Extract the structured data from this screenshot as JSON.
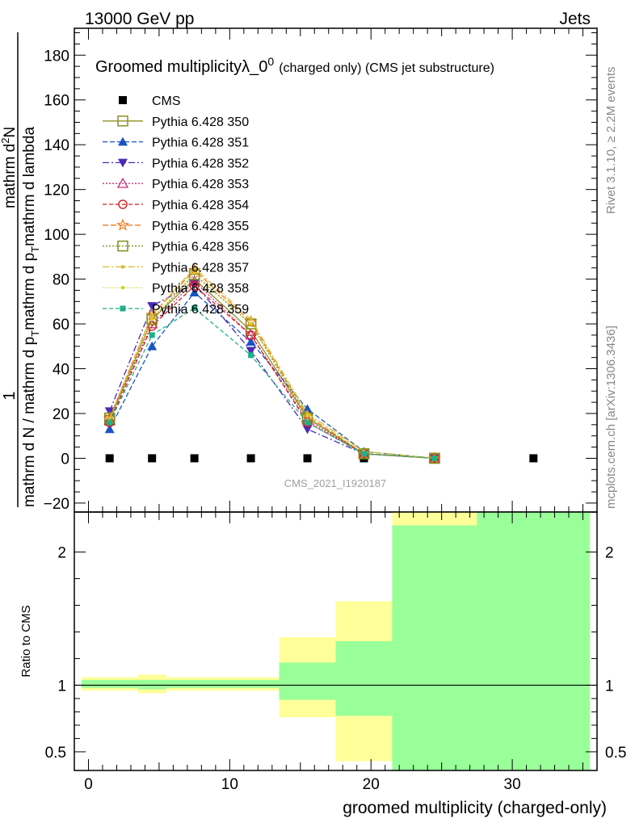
{
  "header": {
    "left": "13000 GeV pp",
    "right": "Jets"
  },
  "side_labels": {
    "rivet": "Rivet 3.1.10, ≥ 2.2M events",
    "mcplots": "mcplots.cern.ch [arXiv:1306.3436]"
  },
  "watermark": "CMS_2021_I1920187",
  "chart_data": [
    {
      "type": "line",
      "title": "Groomed multiplicityλ_0",
      "title_sup": "0",
      "title_suffix": "(charged only) (CMS jet substructure)",
      "ylabel": {
        "numerator": "1",
        "denominator": "mathrm d N / mathrm d p",
        "denominator_sub": "T",
        "denominator_tail": "mathrm d p",
        "denominator_tail_sub": "T",
        "denominator_end": "mathrm d lambda",
        "numerator_right": "mathrm d",
        "numerator_right_sup": "2",
        "numerator_right_end": "N"
      },
      "xlim": [
        -1,
        36
      ],
      "ylim": [
        -24,
        192
      ],
      "yticks": [
        -20,
        0,
        20,
        40,
        60,
        80,
        100,
        120,
        140,
        160,
        180
      ],
      "x": [
        1.5,
        4.5,
        7.5,
        11.5,
        15.5,
        19.5,
        24.5
      ],
      "series": [
        {
          "name": "CMS",
          "color": "#000000",
          "marker": "filled-square",
          "dash": "none",
          "x": [
            1.5,
            4.5,
            7.5,
            11.5,
            15.5,
            19.5,
            31.5
          ],
          "values": [
            0,
            0,
            0,
            0,
            0,
            0,
            0
          ]
        },
        {
          "name": "Pythia 6.428 350",
          "color": "#8f8f25",
          "marker": "open-square",
          "dash": "solid",
          "values": [
            17,
            62,
            80,
            57,
            18,
            2,
            0
          ]
        },
        {
          "name": "Pythia 6.428 351",
          "color": "#1a53c4",
          "marker": "filled-triangle-up",
          "dash": "6,3",
          "values": [
            13,
            50,
            74,
            52,
            22,
            3,
            0
          ]
        },
        {
          "name": "Pythia 6.428 352",
          "color": "#4b2bb5",
          "marker": "filled-triangle-down",
          "dash": "8,3,2,3",
          "values": [
            21,
            68,
            78,
            48,
            13,
            2,
            0
          ]
        },
        {
          "name": "Pythia 6.428 353",
          "color": "#c2307a",
          "marker": "open-triangle-up",
          "dash": "2,2",
          "values": [
            17,
            60,
            79,
            55,
            17,
            2,
            0
          ]
        },
        {
          "name": "Pythia 6.428 354",
          "color": "#d41e1e",
          "marker": "open-circle",
          "dash": "5,3",
          "values": [
            16,
            59,
            77,
            55,
            16,
            2,
            0
          ]
        },
        {
          "name": "Pythia 6.428 355",
          "color": "#f07a1c",
          "marker": "open-star",
          "dash": "7,3",
          "values": [
            18,
            64,
            84,
            61,
            19,
            2,
            0
          ]
        },
        {
          "name": "Pythia 6.428 356",
          "color": "#7f8f1a",
          "marker": "open-square",
          "dash": "2,2",
          "values": [
            18,
            62,
            82,
            60,
            18,
            2,
            0
          ]
        },
        {
          "name": "Pythia 6.428 357",
          "color": "#d9b82c",
          "marker": "small-dot",
          "dash": "8,3,2,3",
          "values": [
            18,
            64,
            85,
            62,
            20,
            3,
            0
          ]
        },
        {
          "name": "Pythia 6.428 358",
          "color": "#c7d622",
          "marker": "small-dot",
          "dash": "1,2",
          "values": [
            17,
            62,
            83,
            60,
            19,
            3,
            0
          ]
        },
        {
          "name": "Pythia 6.428 359",
          "color": "#1fb08a",
          "marker": "filled-square-small",
          "dash": "5,3",
          "values": [
            16,
            55,
            67,
            46,
            16,
            2,
            0
          ]
        }
      ]
    },
    {
      "type": "area",
      "ylabel": "Ratio to CMS",
      "xlabel": "groomed multiplicity (charged-only)",
      "xlim": [
        -1,
        36
      ],
      "ylim": [
        0.36,
        2.3
      ],
      "yticks": [
        0.5,
        1,
        2
      ],
      "xticks": [
        0,
        10,
        20,
        30
      ],
      "reference_line": 1,
      "bands": [
        {
          "x": [
            -0.5,
            3.5
          ],
          "yellow": [
            0.96,
            1.06
          ],
          "green": [
            0.98,
            1.04
          ]
        },
        {
          "x": [
            3.5,
            5.5
          ],
          "yellow": [
            0.94,
            1.08
          ],
          "green": [
            0.97,
            1.04
          ]
        },
        {
          "x": [
            5.5,
            13.5
          ],
          "yellow": [
            0.96,
            1.06
          ],
          "green": [
            0.98,
            1.04
          ]
        },
        {
          "x": [
            13.5,
            17.5
          ],
          "yellow": [
            0.76,
            1.36
          ],
          "green": [
            0.89,
            1.17
          ]
        },
        {
          "x": [
            17.5,
            21.5
          ],
          "yellow": [
            0.43,
            1.63
          ],
          "green": [
            0.77,
            1.33
          ]
        },
        {
          "x": [
            21.5,
            27.5
          ],
          "yellow": [
            0.36,
            2.3
          ],
          "green": [
            0.36,
            2.2
          ]
        },
        {
          "x": [
            27.5,
            35.5
          ],
          "yellow": [
            0.36,
            2.3
          ],
          "green": [
            0.36,
            2.3
          ]
        }
      ]
    }
  ]
}
